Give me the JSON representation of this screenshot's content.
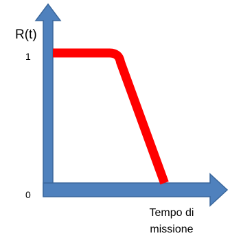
{
  "chart_data": {
    "type": "line",
    "ylabel": "R(t)",
    "xlabel": "Tempo di missione",
    "yticks": [
      "1",
      "0"
    ],
    "ylim": [
      0,
      1
    ],
    "xlim": [
      0,
      10
    ],
    "grid": false,
    "series": [
      {
        "x": [
          0,
          3.6,
          4.3,
          7.1
        ],
        "y": [
          1,
          1,
          0.93,
          0
        ],
        "color": "#ff0000"
      }
    ],
    "axis_color": "#4f81bd",
    "axis_border_color": "#3a679c"
  }
}
